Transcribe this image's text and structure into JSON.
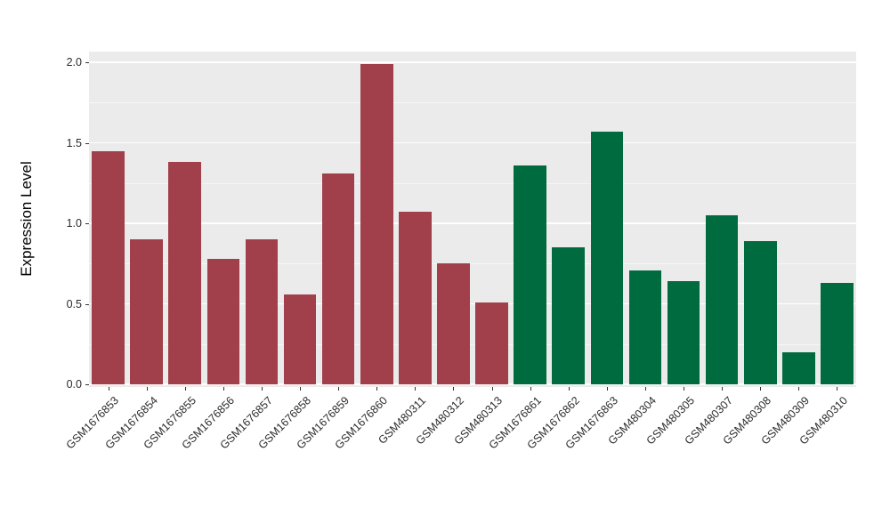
{
  "chart_data": {
    "type": "bar",
    "title": "",
    "xlabel": "",
    "ylabel": "Expression Level",
    "ylim": [
      0,
      2.07
    ],
    "grid": true,
    "legend_position": "none",
    "y_ticks": [
      0.0,
      0.5,
      1.0,
      1.5,
      2.0
    ],
    "y_tick_labels": [
      "0.0",
      "0.5",
      "1.0",
      "1.5",
      "2.0"
    ],
    "y_minor": [
      0.25,
      0.75,
      1.25,
      1.75
    ],
    "categories": [
      "GSM1676853",
      "GSM1676854",
      "GSM1676855",
      "GSM1676856",
      "GSM1676857",
      "GSM1676858",
      "GSM1676859",
      "GSM1676860",
      "GSM480311",
      "GSM480312",
      "GSM480313",
      "GSM1676861",
      "GSM1676862",
      "GSM1676863",
      "GSM480304",
      "GSM480305",
      "GSM480307",
      "GSM480308",
      "GSM480309",
      "GSM480310"
    ],
    "values": [
      1.45,
      0.9,
      1.38,
      0.78,
      0.9,
      0.56,
      1.31,
      1.99,
      1.07,
      0.75,
      0.51,
      1.36,
      0.85,
      1.57,
      0.71,
      0.64,
      1.05,
      0.89,
      0.2,
      0.63
    ],
    "groups": [
      "A",
      "A",
      "A",
      "A",
      "A",
      "A",
      "A",
      "A",
      "A",
      "A",
      "A",
      "B",
      "B",
      "B",
      "B",
      "B",
      "B",
      "B",
      "B",
      "B"
    ],
    "group_colors": {
      "A": "#A13F4B",
      "B": "#016B40"
    },
    "colors": {
      "panel_background": "#EBEBEB",
      "gridline": "#FFFFFF",
      "tick_text": "#2B2B2B",
      "axis_title_text": "#000000"
    }
  }
}
